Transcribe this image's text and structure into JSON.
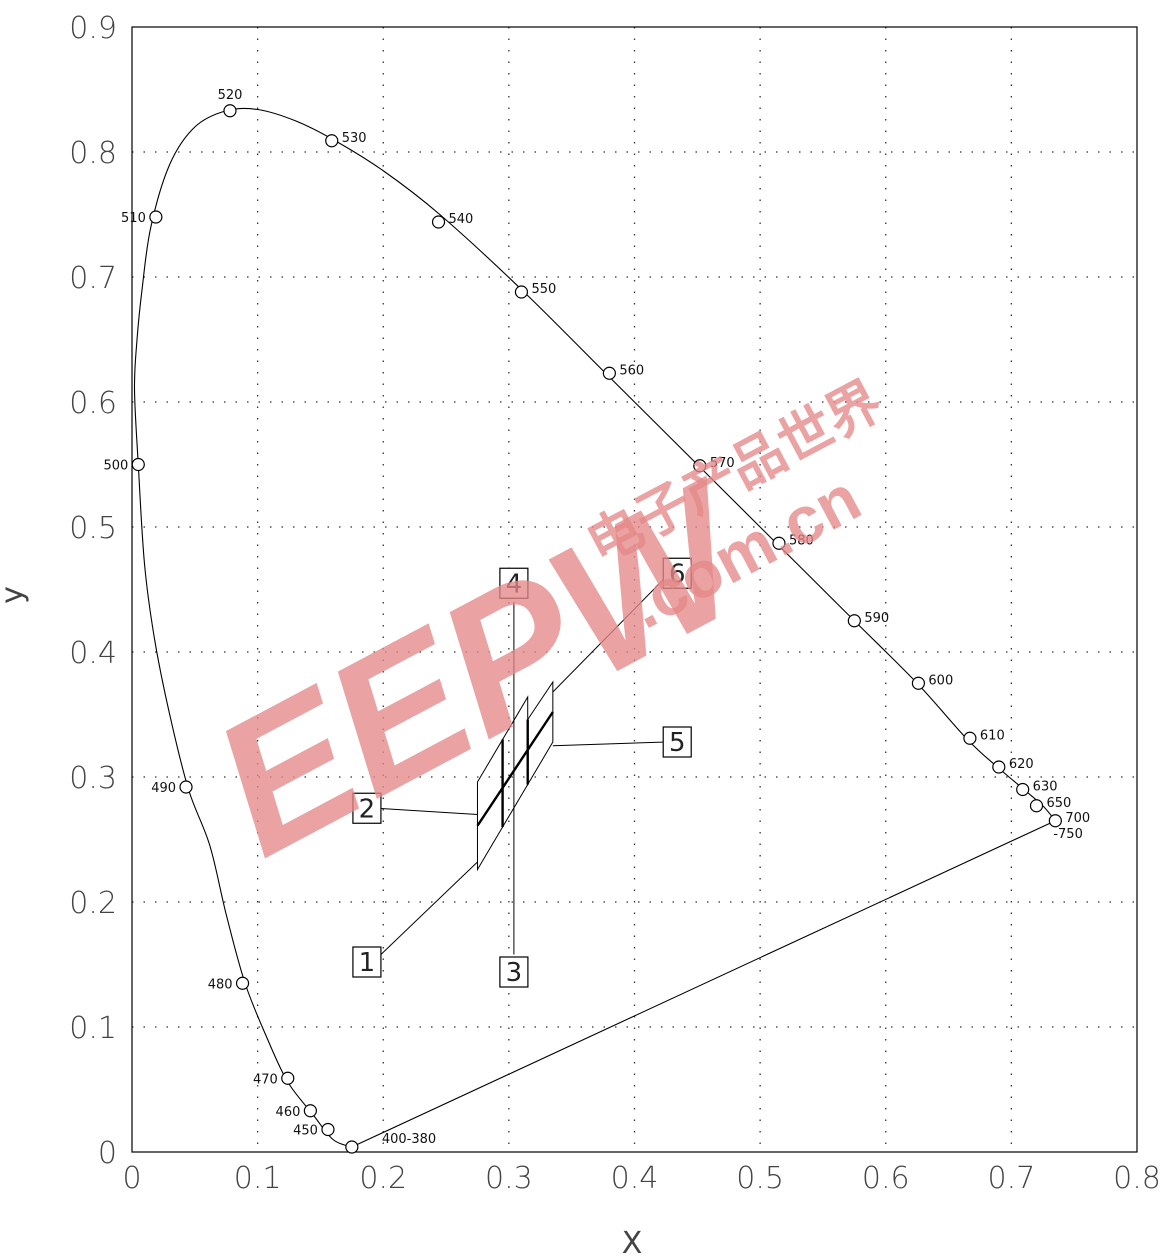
{
  "chart_data": {
    "type": "line",
    "xlabel": "X",
    "ylabel": "y",
    "xlim": [
      0,
      0.8
    ],
    "ylim": [
      0,
      0.9
    ],
    "grid": true,
    "x_ticks": [
      "0",
      "0.1",
      "0.2",
      "0.3",
      "0.4",
      "0.5",
      "0.6",
      "0.7",
      "0.8"
    ],
    "y_ticks": [
      "0",
      "0.1",
      "0.2",
      "0.3",
      "0.4",
      "0.5",
      "0.6",
      "0.7",
      "0.8",
      "0.9"
    ],
    "spectral_locus_curve": [
      [
        0.175,
        0.004
      ],
      [
        0.16,
        0.01
      ],
      [
        0.144,
        0.03
      ],
      [
        0.124,
        0.056
      ],
      [
        0.108,
        0.09
      ],
      [
        0.09,
        0.135
      ],
      [
        0.075,
        0.19
      ],
      [
        0.062,
        0.245
      ],
      [
        0.045,
        0.29
      ],
      [
        0.03,
        0.35
      ],
      [
        0.018,
        0.41
      ],
      [
        0.01,
        0.47
      ],
      [
        0.005,
        0.55
      ],
      [
        0.002,
        0.61
      ],
      [
        0.004,
        0.65
      ],
      [
        0.008,
        0.69
      ],
      [
        0.015,
        0.74
      ],
      [
        0.03,
        0.79
      ],
      [
        0.05,
        0.82
      ],
      [
        0.075,
        0.833
      ],
      [
        0.1,
        0.834
      ],
      [
        0.13,
        0.825
      ],
      [
        0.16,
        0.81
      ],
      [
        0.2,
        0.785
      ],
      [
        0.245,
        0.75
      ],
      [
        0.31,
        0.69
      ],
      [
        0.38,
        0.62
      ],
      [
        0.45,
        0.55
      ],
      [
        0.515,
        0.485
      ],
      [
        0.575,
        0.425
      ],
      [
        0.625,
        0.375
      ],
      [
        0.665,
        0.33
      ],
      [
        0.69,
        0.307
      ],
      [
        0.71,
        0.29
      ],
      [
        0.725,
        0.277
      ],
      [
        0.735,
        0.265
      ]
    ],
    "purple_line": [
      [
        0.175,
        0.004
      ],
      [
        0.735,
        0.265
      ]
    ],
    "wavelength_points": [
      {
        "label": "400-380",
        "x": 0.175,
        "y": 0.004
      },
      {
        "label": "450",
        "x": 0.156,
        "y": 0.018
      },
      {
        "label": "460",
        "x": 0.142,
        "y": 0.033
      },
      {
        "label": "470",
        "x": 0.124,
        "y": 0.059
      },
      {
        "label": "480",
        "x": 0.088,
        "y": 0.135
      },
      {
        "label": "490",
        "x": 0.043,
        "y": 0.292
      },
      {
        "label": "500",
        "x": 0.005,
        "y": 0.55
      },
      {
        "label": "510",
        "x": 0.019,
        "y": 0.748
      },
      {
        "label": "520",
        "x": 0.078,
        "y": 0.833
      },
      {
        "label": "530",
        "x": 0.159,
        "y": 0.809
      },
      {
        "label": "540",
        "x": 0.244,
        "y": 0.744
      },
      {
        "label": "550",
        "x": 0.31,
        "y": 0.688
      },
      {
        "label": "560",
        "x": 0.38,
        "y": 0.623
      },
      {
        "label": "570",
        "x": 0.452,
        "y": 0.549
      },
      {
        "label": "580",
        "x": 0.515,
        "y": 0.487
      },
      {
        "label": "590",
        "x": 0.575,
        "y": 0.425
      },
      {
        "label": "600",
        "x": 0.626,
        "y": 0.375
      },
      {
        "label": "610",
        "x": 0.667,
        "y": 0.331
      },
      {
        "label": "620",
        "x": 0.69,
        "y": 0.308
      },
      {
        "label": "630",
        "x": 0.709,
        "y": 0.29
      },
      {
        "label": "650",
        "x": 0.72,
        "y": 0.277
      },
      {
        "label": "700\n-750",
        "x": 0.735,
        "y": 0.265
      }
    ],
    "annotation_boxes": [
      {
        "label": "1",
        "x": 0.187,
        "y": 0.152
      },
      {
        "label": "2",
        "x": 0.187,
        "y": 0.275
      },
      {
        "label": "3",
        "x": 0.304,
        "y": 0.144
      },
      {
        "label": "4",
        "x": 0.304,
        "y": 0.455
      },
      {
        "label": "5",
        "x": 0.434,
        "y": 0.328
      },
      {
        "label": "6",
        "x": 0.434,
        "y": 0.463
      }
    ],
    "region_quads": [
      [
        [
          0.275,
          0.226
        ],
        [
          0.295,
          0.26
        ],
        [
          0.295,
          0.33
        ],
        [
          0.275,
          0.296
        ]
      ],
      [
        [
          0.295,
          0.26
        ],
        [
          0.315,
          0.294
        ],
        [
          0.315,
          0.364
        ],
        [
          0.295,
          0.33
        ]
      ],
      [
        [
          0.315,
          0.294
        ],
        [
          0.335,
          0.328
        ],
        [
          0.335,
          0.376
        ],
        [
          0.315,
          0.346
        ]
      ]
    ]
  },
  "watermark": {
    "logo_text": "EEPW",
    "cn_text": "电子产品世界",
    "domain_text": ".com.cn"
  }
}
